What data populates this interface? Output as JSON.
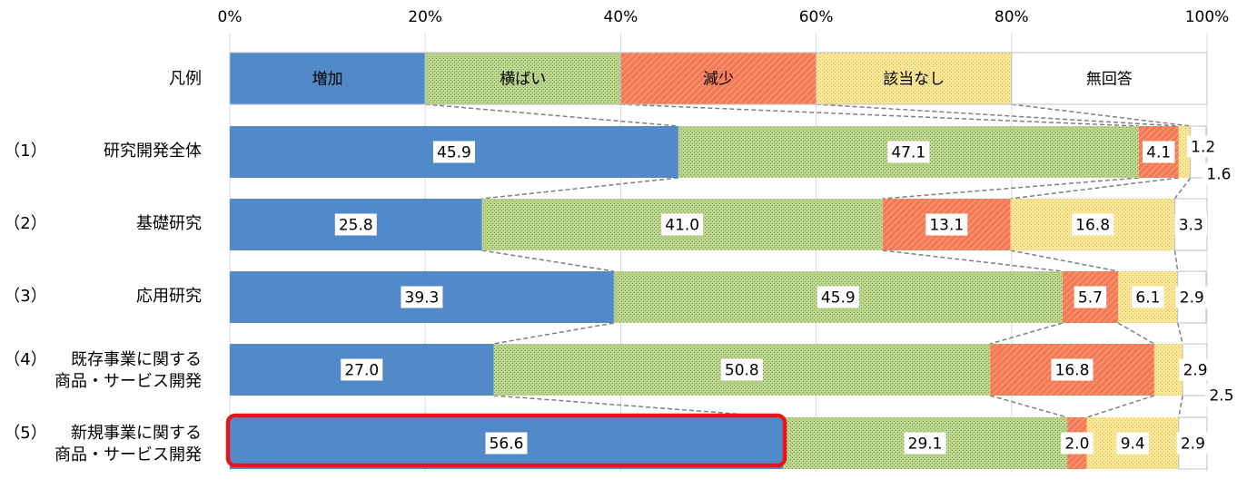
{
  "chart_data": {
    "type": "bar",
    "orientation": "horizontal",
    "stacked": true,
    "percent_axis": true,
    "xlim": [
      0,
      100
    ],
    "x_ticks": [
      "0%",
      "20%",
      "40%",
      "60%",
      "80%",
      "100%"
    ],
    "x_tick_values": [
      0,
      20,
      40,
      60,
      80,
      100
    ],
    "grid": true,
    "legend_row": {
      "label": "凡例",
      "items": [
        "増加",
        "横ばい",
        "減少",
        "該当なし",
        "無回答"
      ]
    },
    "categories": [
      {
        "num": "（1）",
        "lines": [
          "研究開発全体"
        ]
      },
      {
        "num": "（2）",
        "lines": [
          "基礎研究"
        ]
      },
      {
        "num": "（3）",
        "lines": [
          "応用研究"
        ]
      },
      {
        "num": "（4）",
        "lines": [
          "既存事業に関する",
          "商品・サービス開発"
        ]
      },
      {
        "num": "（5）",
        "lines": [
          "新規事業に関する",
          "商品・サービス開発"
        ]
      }
    ],
    "series": [
      {
        "name": "増加",
        "color": "#5289c8",
        "values": [
          45.9,
          25.8,
          39.3,
          27.0,
          56.6
        ]
      },
      {
        "name": "横ばい",
        "color": "#a9c77c",
        "values": [
          47.1,
          41.0,
          45.9,
          50.8,
          29.1
        ]
      },
      {
        "name": "減少",
        "color": "#f47f5c",
        "values": [
          4.1,
          13.1,
          5.7,
          16.8,
          2.0
        ]
      },
      {
        "name": "該当なし",
        "color": "#fbe08a",
        "values": [
          1.2,
          16.8,
          6.1,
          2.9,
          9.4
        ]
      },
      {
        "name": "無回答",
        "color": "#ffffff",
        "values": [
          1.6,
          3.3,
          2.9,
          2.5,
          2.9
        ]
      }
    ],
    "data_labels": [
      [
        "45.9",
        "47.1",
        "4.1",
        "1.2",
        "1.6"
      ],
      [
        "25.8",
        "41.0",
        "13.1",
        "16.8",
        "3.3"
      ],
      [
        "39.3",
        "45.9",
        "5.7",
        "6.1",
        "2.9"
      ],
      [
        "27.0",
        "50.8",
        "16.8",
        "2.9",
        "2.5"
      ],
      [
        "56.6",
        "29.1",
        "2.0",
        "9.4",
        "2.9"
      ]
    ],
    "highlight": {
      "category_index": 4,
      "series_index": 0,
      "color": "#e8141a"
    }
  }
}
